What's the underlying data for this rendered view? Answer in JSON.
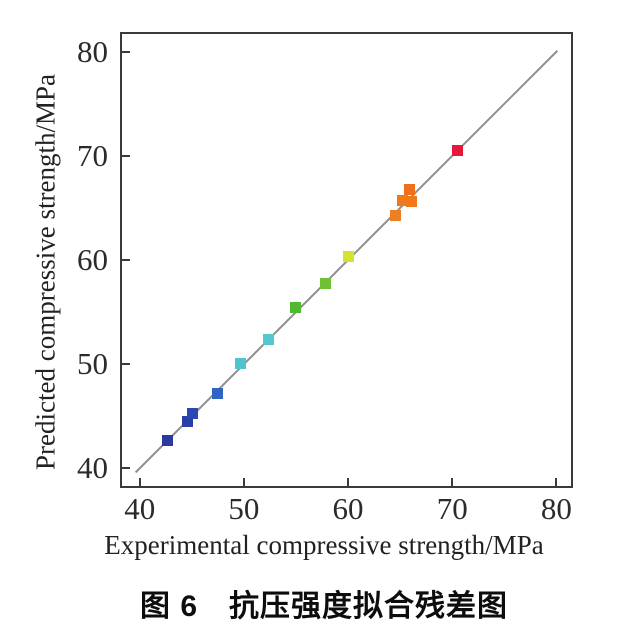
{
  "caption": "图 6　抗压强度拟合残差图",
  "chart_data": {
    "type": "scatter",
    "xlabel": "Experimental compressive strength/MPa",
    "ylabel": "Predicted compressive strength/MPa",
    "xlim": [
      38.1,
      81.6
    ],
    "ylim": [
      38.1,
      81.9
    ],
    "xticks": [
      40,
      50,
      60,
      70,
      80
    ],
    "yticks": [
      40,
      50,
      60,
      70,
      80
    ],
    "grid": false,
    "legend": null,
    "axis_color": "#3a3a3a",
    "tick_label_color": "#2b2b2b",
    "identity_line": {
      "x1": 39.6,
      "y1": 39.6,
      "x2": 80.1,
      "y2": 80.1,
      "color": "#8f8f8f",
      "width": 2
    },
    "series": [
      {
        "name": "predicted-vs-experimental",
        "marker": "square",
        "marker_size_px": 11,
        "points": [
          {
            "x": 42.7,
            "y": 42.7,
            "color": "#2a3a9f"
          },
          {
            "x": 44.6,
            "y": 44.5,
            "color": "#2a3fa6"
          },
          {
            "x": 45.1,
            "y": 45.3,
            "color": "#2c47b0"
          },
          {
            "x": 47.5,
            "y": 47.2,
            "color": "#2f64c2"
          },
          {
            "x": 49.7,
            "y": 50.1,
            "color": "#4ec4cd"
          },
          {
            "x": 52.4,
            "y": 52.4,
            "color": "#54c7cf"
          },
          {
            "x": 55.0,
            "y": 55.4,
            "color": "#50b92f"
          },
          {
            "x": 57.8,
            "y": 57.7,
            "color": "#6fc033"
          },
          {
            "x": 60.0,
            "y": 60.3,
            "color": "#d5e32c"
          },
          {
            "x": 64.6,
            "y": 64.3,
            "color": "#ed7e22"
          },
          {
            "x": 65.2,
            "y": 65.7,
            "color": "#ee7a1e"
          },
          {
            "x": 66.1,
            "y": 65.6,
            "color": "#f0781a"
          },
          {
            "x": 65.9,
            "y": 66.8,
            "color": "#ef6f1c"
          },
          {
            "x": 70.5,
            "y": 70.5,
            "color": "#e6183a"
          }
        ]
      }
    ]
  }
}
